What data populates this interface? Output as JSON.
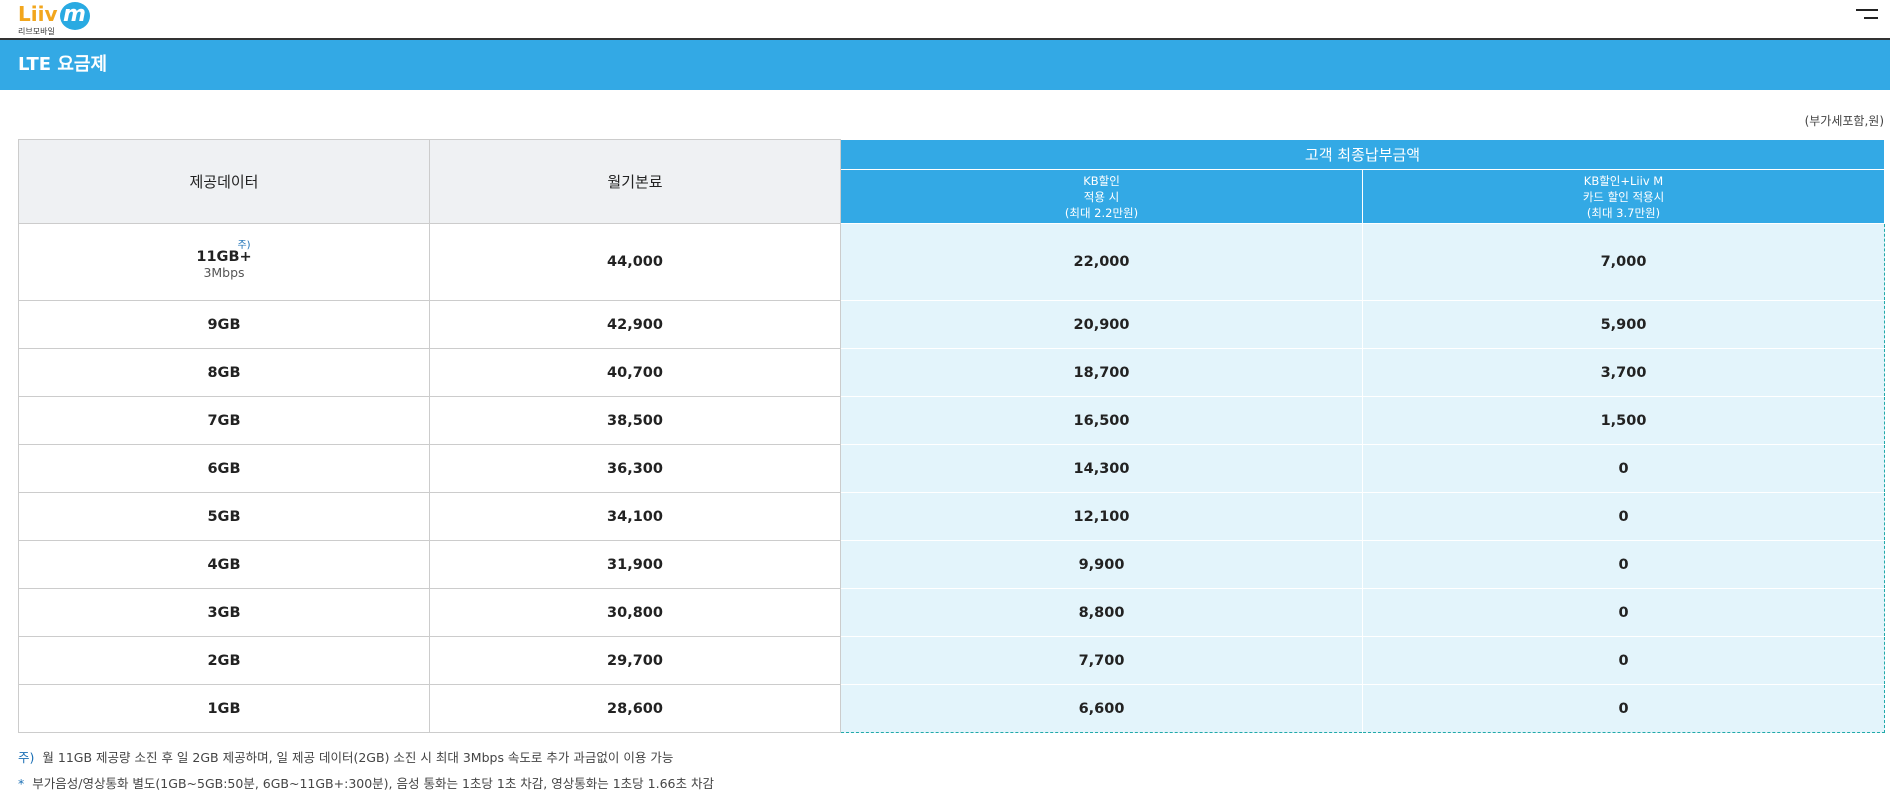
{
  "logo": {
    "name": "Liiv",
    "m": "m",
    "sub": "리브모바일"
  },
  "header": {
    "title": "LTE 요금제",
    "unit_note": "(부가세포함,원)"
  },
  "table": {
    "col_headers": [
      "제공데이터",
      "월기본료"
    ],
    "group_header": "고객 최종납부금액",
    "sub_headers": [
      [
        "KB할인",
        "적용 시",
        "(최대 2.2만원)"
      ],
      [
        "KB할인+Liiv M",
        "카드 할인 적용시",
        "(최대 3.7만원)"
      ]
    ],
    "rows": [
      {
        "data": "11GB+",
        "mark": "주)",
        "speed": "3Mbps",
        "fee": "44,000",
        "kb": "22,000",
        "kb_card": "7,000"
      },
      {
        "data": "9GB",
        "fee": "42,900",
        "kb": "20,900",
        "kb_card": "5,900"
      },
      {
        "data": "8GB",
        "fee": "40,700",
        "kb": "18,700",
        "kb_card": "3,700"
      },
      {
        "data": "7GB",
        "fee": "38,500",
        "kb": "16,500",
        "kb_card": "1,500"
      },
      {
        "data": "6GB",
        "fee": "36,300",
        "kb": "14,300",
        "kb_card": "0"
      },
      {
        "data": "5GB",
        "fee": "34,100",
        "kb": "12,100",
        "kb_card": "0"
      },
      {
        "data": "4GB",
        "fee": "31,900",
        "kb": "9,900",
        "kb_card": "0"
      },
      {
        "data": "3GB",
        "fee": "30,800",
        "kb": "8,800",
        "kb_card": "0"
      },
      {
        "data": "2GB",
        "fee": "29,700",
        "kb": "7,700",
        "kb_card": "0"
      },
      {
        "data": "1GB",
        "fee": "28,600",
        "kb": "6,600",
        "kb_card": "0"
      }
    ]
  },
  "footnotes": [
    {
      "marker": "주)",
      "text": "월 11GB 제공량 소진 후 일 2GB 제공하며, 일 제공 데이터(2GB) 소진 시 최대 3Mbps 속도로 추가 과금없이 이용 가능"
    },
    {
      "marker": "*",
      "text": "부가음성/영상통화 별도(1GB~5GB:50분, 6GB~11GB+:300분), 음성 통화는 1초당 1초 차감, 영상통화는 1초당 1.66초 차감"
    }
  ]
}
